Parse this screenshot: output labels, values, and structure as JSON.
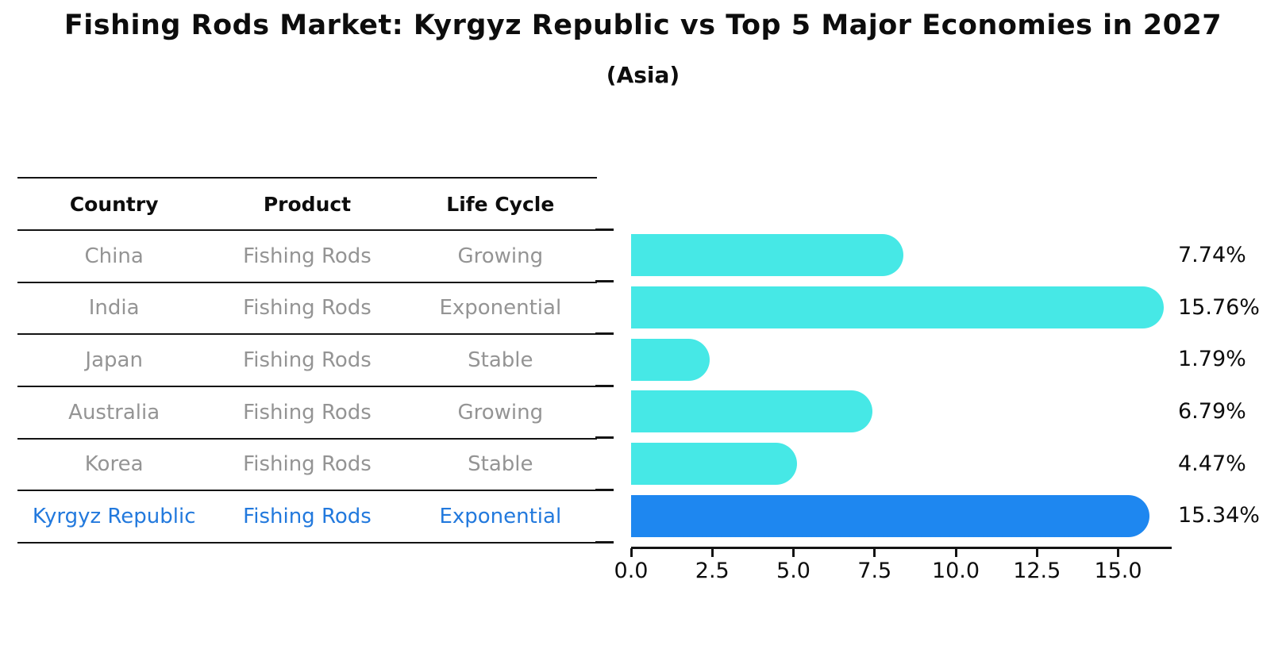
{
  "title": "Fishing Rods Market: Kyrgyz Republic vs Top 5 Major Economies in 2027",
  "subtitle": "(Asia)",
  "table": {
    "columns": [
      "Country",
      "Product",
      "Life Cycle"
    ],
    "rows": [
      {
        "country": "China",
        "product": "Fishing Rods",
        "life_cycle": "Growing",
        "highlight": false
      },
      {
        "country": "India",
        "product": "Fishing Rods",
        "life_cycle": "Exponential",
        "highlight": false
      },
      {
        "country": "Japan",
        "product": "Fishing Rods",
        "life_cycle": "Stable",
        "highlight": false
      },
      {
        "country": "Australia",
        "product": "Fishing Rods",
        "life_cycle": "Growing",
        "highlight": false
      },
      {
        "country": "Korea",
        "product": "Fishing Rods",
        "life_cycle": "Stable",
        "highlight": false
      },
      {
        "country": "Kyrgyz Republic",
        "product": "Fishing Rods",
        "life_cycle": "Exponential",
        "highlight": true
      }
    ]
  },
  "chart_data": {
    "type": "bar",
    "orientation": "horizontal",
    "title": "Fishing Rods Market: Kyrgyz Republic vs Top 5 Major Economies in 2027",
    "subtitle": "(Asia)",
    "categories": [
      "China",
      "India",
      "Japan",
      "Australia",
      "Korea",
      "Kyrgyz Republic"
    ],
    "values": [
      7.74,
      15.76,
      1.79,
      6.79,
      4.47,
      15.34
    ],
    "value_labels": [
      "7.74%",
      "15.76%",
      "1.79%",
      "6.79%",
      "4.47%",
      "15.34%"
    ],
    "unit": "%",
    "highlight_category": "Kyrgyz Republic",
    "bar_color": "#46E8E6",
    "highlight_color": "#1E87F0",
    "highlight_text_color": "#2279DD",
    "table_text_color": "#949494",
    "x_ticks": [
      0.0,
      2.5,
      5.0,
      7.5,
      10.0,
      12.5,
      15.0
    ],
    "x_tick_labels": [
      "0.0",
      "2.5",
      "5.0",
      "7.5",
      "10.0",
      "12.5",
      "15.0"
    ],
    "xlim": [
      0,
      16.6
    ],
    "grid": false,
    "legend": false
  }
}
